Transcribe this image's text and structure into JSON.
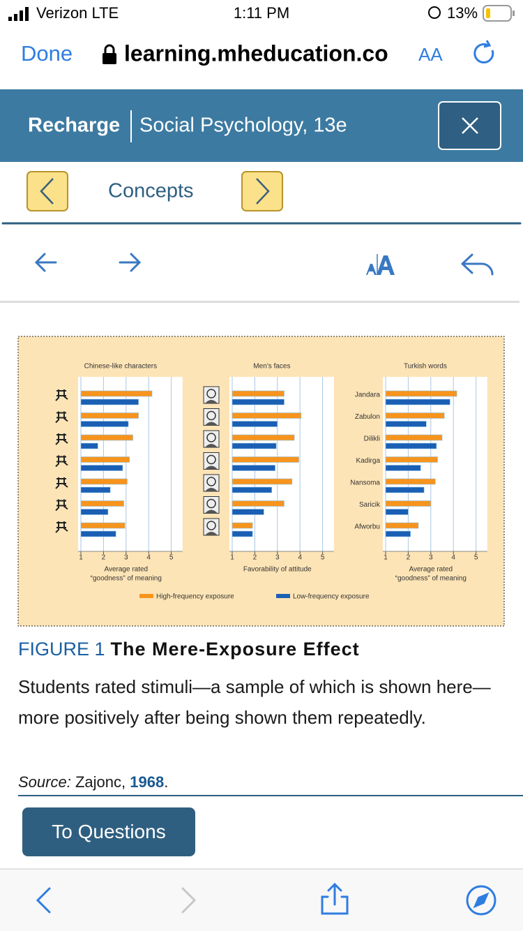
{
  "status_bar": {
    "carrier": "Verizon LTE",
    "time": "1:11 PM",
    "battery": "13%"
  },
  "browser": {
    "done": "Done",
    "url": "learning.mheducation.co",
    "text_size": "AA"
  },
  "header": {
    "brand": "Recharge",
    "book": "Social Psychology, 13e"
  },
  "nav": {
    "section": "Concepts"
  },
  "chart_data": [
    {
      "type": "bar",
      "orientation": "horizontal",
      "title": "Chinese-like characters",
      "categories": [
        null,
        null,
        null,
        null,
        null,
        null,
        null
      ],
      "series": [
        {
          "name": "High-frequency exposure",
          "color": "#f7941d",
          "values": [
            4.15,
            3.55,
            3.3,
            3.15,
            3.05,
            2.9,
            2.95
          ]
        },
        {
          "name": "Low-frequency exposure",
          "color": "#1a5fb4",
          "values": [
            3.55,
            3.1,
            1.75,
            2.85,
            2.3,
            2.2,
            2.55
          ]
        }
      ],
      "xlim": [
        1,
        5.5
      ],
      "xticks": [
        1,
        2,
        3,
        4,
        5
      ],
      "xlabel": [
        "Average rated",
        "“goodness” of meaning"
      ],
      "grid": true
    },
    {
      "type": "bar",
      "orientation": "horizontal",
      "title": "Men’s faces",
      "categories": [
        null,
        null,
        null,
        null,
        null,
        null,
        null
      ],
      "series": [
        {
          "color": "#f7941d",
          "values": [
            3.3,
            4.05,
            3.75,
            3.95,
            3.65,
            3.3,
            1.9
          ]
        },
        {
          "color": "#1a5fb4",
          "values": [
            3.3,
            3.0,
            2.95,
            2.9,
            2.75,
            2.4,
            1.9
          ]
        }
      ],
      "xlim": [
        1,
        5.5
      ],
      "xticks": [
        1,
        2,
        3,
        4,
        5
      ],
      "xlabel": [
        "Favorability of attitude"
      ],
      "grid": true
    },
    {
      "type": "bar",
      "orientation": "horizontal",
      "title": "Turkish words",
      "categories": [
        "Jandara",
        "Zabulon",
        "Dilikli",
        "Kadirga",
        "Nansoma",
        "Saricik",
        "Afworbu"
      ],
      "series": [
        {
          "color": "#f7941d",
          "values": [
            4.15,
            3.6,
            3.5,
            3.3,
            3.2,
            3.0,
            2.45
          ]
        },
        {
          "color": "#1a5fb4",
          "values": [
            3.85,
            2.8,
            3.25,
            2.55,
            2.7,
            2.0,
            2.1
          ]
        }
      ],
      "xlim": [
        1,
        5.5
      ],
      "xticks": [
        1,
        2,
        3,
        4,
        5
      ],
      "xlabel": [
        "Average rated",
        "“goodness” of meaning"
      ],
      "grid": true
    }
  ],
  "caption": {
    "label": "FIGURE 1",
    "title": "The Mere-Exposure Effect",
    "text": "Students rated stimuli—a sample of which is shown here—more positively after being shown them repeatedly.",
    "source_label": "Source:",
    "source_author": "Zajonc,",
    "source_year": "1968",
    "source_end": "."
  },
  "buttons": {
    "questions": "To Questions"
  }
}
